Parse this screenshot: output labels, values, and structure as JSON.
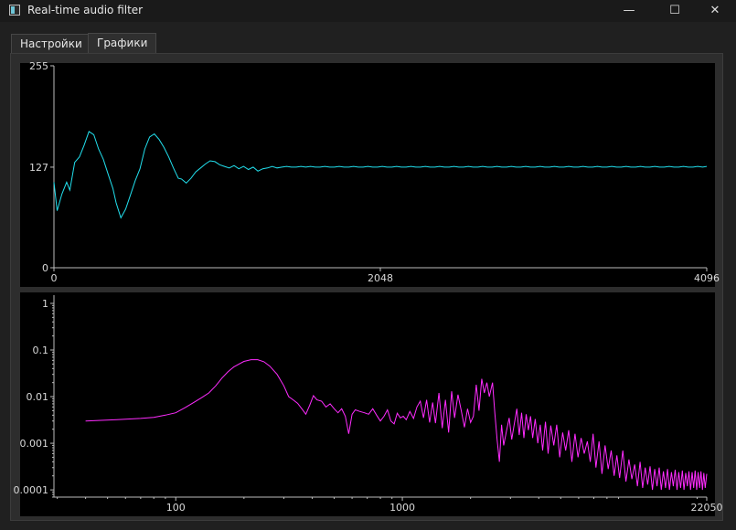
{
  "window": {
    "title": "Real-time audio filter",
    "minimize_glyph": "—",
    "maximize_glyph": "☐",
    "close_glyph": "✕",
    "icon": "app-window-icon"
  },
  "tabs": [
    {
      "label": "Настройки",
      "active": false
    },
    {
      "label": "Графики",
      "active": true
    }
  ],
  "colors": {
    "waveform": "#22e0ee",
    "spectrum": "#ff2cff",
    "axis": "#bdbdbd"
  },
  "chart_data": [
    {
      "type": "line",
      "name": "waveform",
      "xlim": [
        0,
        4096
      ],
      "ylim": [
        0,
        255
      ],
      "x_ticks": [
        0,
        2048,
        4096
      ],
      "y_ticks": [
        0,
        127,
        255
      ],
      "x_tick_labels": [
        "0",
        "2048",
        "4096"
      ],
      "y_tick_labels": [
        "0",
        "127",
        "255"
      ],
      "grid": false,
      "series": [
        {
          "color": "#22e0ee"
        }
      ],
      "points": [
        [
          0,
          108
        ],
        [
          20,
          72
        ],
        [
          50,
          93
        ],
        [
          80,
          108
        ],
        [
          100,
          98
        ],
        [
          130,
          133
        ],
        [
          160,
          140
        ],
        [
          190,
          155
        ],
        [
          220,
          172
        ],
        [
          250,
          168
        ],
        [
          280,
          150
        ],
        [
          310,
          137
        ],
        [
          340,
          118
        ],
        [
          370,
          100
        ],
        [
          390,
          82
        ],
        [
          420,
          63
        ],
        [
          450,
          74
        ],
        [
          480,
          92
        ],
        [
          510,
          110
        ],
        [
          540,
          125
        ],
        [
          570,
          150
        ],
        [
          600,
          165
        ],
        [
          630,
          169
        ],
        [
          660,
          162
        ],
        [
          690,
          152
        ],
        [
          720,
          140
        ],
        [
          750,
          126
        ],
        [
          780,
          113
        ],
        [
          800,
          112
        ],
        [
          830,
          107
        ],
        [
          860,
          113
        ],
        [
          890,
          121
        ],
        [
          920,
          126
        ],
        [
          950,
          131
        ],
        [
          980,
          135
        ],
        [
          1010,
          134
        ],
        [
          1040,
          130
        ],
        [
          1070,
          128
        ],
        [
          1100,
          126
        ],
        [
          1130,
          129
        ],
        [
          1160,
          125
        ],
        [
          1190,
          128
        ],
        [
          1220,
          124
        ],
        [
          1250,
          127
        ],
        [
          1280,
          122
        ],
        [
          1310,
          125
        ],
        [
          1340,
          126
        ],
        [
          1370,
          128
        ],
        [
          1400,
          126
        ],
        [
          1430,
          127
        ],
        [
          1460,
          128
        ],
        [
          1490,
          127
        ],
        [
          1520,
          127
        ],
        [
          1550,
          128
        ],
        [
          1580,
          127
        ],
        [
          1610,
          128
        ],
        [
          1640,
          127
        ],
        [
          1670,
          127
        ],
        [
          1700,
          128
        ],
        [
          1730,
          127
        ],
        [
          1760,
          127
        ],
        [
          1790,
          128
        ],
        [
          1820,
          127
        ],
        [
          1850,
          127
        ],
        [
          1880,
          128
        ],
        [
          1910,
          127
        ],
        [
          1940,
          127
        ],
        [
          1970,
          128
        ],
        [
          2000,
          127
        ],
        [
          2030,
          127
        ],
        [
          2060,
          128
        ],
        [
          2090,
          127
        ],
        [
          2120,
          127
        ],
        [
          2150,
          128
        ],
        [
          2180,
          127
        ],
        [
          2210,
          127
        ],
        [
          2240,
          128
        ],
        [
          2270,
          127
        ],
        [
          2300,
          127
        ],
        [
          2330,
          128
        ],
        [
          2360,
          127
        ],
        [
          2390,
          127
        ],
        [
          2420,
          128
        ],
        [
          2450,
          127
        ],
        [
          2480,
          127
        ],
        [
          2510,
          128
        ],
        [
          2540,
          127
        ],
        [
          2570,
          127
        ],
        [
          2600,
          128
        ],
        [
          2630,
          127
        ],
        [
          2660,
          127
        ],
        [
          2690,
          128
        ],
        [
          2720,
          127
        ],
        [
          2750,
          127
        ],
        [
          2780,
          128
        ],
        [
          2810,
          127
        ],
        [
          2840,
          127
        ],
        [
          2870,
          128
        ],
        [
          2900,
          127
        ],
        [
          2930,
          127
        ],
        [
          2960,
          128
        ],
        [
          2990,
          127
        ],
        [
          3020,
          127
        ],
        [
          3050,
          128
        ],
        [
          3080,
          127
        ],
        [
          3110,
          127
        ],
        [
          3140,
          128
        ],
        [
          3170,
          127
        ],
        [
          3200,
          127
        ],
        [
          3230,
          128
        ],
        [
          3260,
          127
        ],
        [
          3290,
          127
        ],
        [
          3320,
          128
        ],
        [
          3350,
          127
        ],
        [
          3380,
          127
        ],
        [
          3410,
          128
        ],
        [
          3440,
          127
        ],
        [
          3470,
          127
        ],
        [
          3500,
          128
        ],
        [
          3530,
          127
        ],
        [
          3560,
          127
        ],
        [
          3590,
          128
        ],
        [
          3620,
          127
        ],
        [
          3650,
          127
        ],
        [
          3680,
          128
        ],
        [
          3710,
          127
        ],
        [
          3740,
          127
        ],
        [
          3770,
          128
        ],
        [
          3800,
          127
        ],
        [
          3830,
          127
        ],
        [
          3860,
          128
        ],
        [
          3890,
          127
        ],
        [
          3920,
          127
        ],
        [
          3950,
          128
        ],
        [
          3980,
          127
        ],
        [
          4010,
          127
        ],
        [
          4040,
          128
        ],
        [
          4070,
          127
        ],
        [
          4096,
          128
        ]
      ]
    },
    {
      "type": "line",
      "name": "spectrum",
      "xscale": "log",
      "yscale": "log",
      "xlim": [
        29,
        22050
      ],
      "ylim": [
        7e-05,
        1.5
      ],
      "x_ticks": [
        100,
        1000,
        22050
      ],
      "y_ticks": [
        1,
        0.1,
        0.01,
        0.001,
        0.0001
      ],
      "x_tick_labels": [
        "100",
        "1000",
        "22050"
      ],
      "y_tick_labels": [
        "1",
        "0.1",
        "0.01",
        "0.001",
        "0.0001"
      ],
      "grid": false,
      "series": [
        {
          "color": "#ff2cff"
        }
      ],
      "points": [
        [
          40,
          0.003
        ],
        [
          55,
          0.0032
        ],
        [
          70,
          0.0034
        ],
        [
          80,
          0.0036
        ],
        [
          90,
          0.004
        ],
        [
          100,
          0.0045
        ],
        [
          110,
          0.0058
        ],
        [
          120,
          0.0075
        ],
        [
          130,
          0.0095
        ],
        [
          140,
          0.012
        ],
        [
          150,
          0.017
        ],
        [
          160,
          0.025
        ],
        [
          170,
          0.034
        ],
        [
          180,
          0.043
        ],
        [
          190,
          0.05
        ],
        [
          200,
          0.057
        ],
        [
          215,
          0.062
        ],
        [
          230,
          0.062
        ],
        [
          245,
          0.056
        ],
        [
          260,
          0.045
        ],
        [
          280,
          0.03
        ],
        [
          300,
          0.017
        ],
        [
          315,
          0.01
        ],
        [
          330,
          0.0085
        ],
        [
          345,
          0.0072
        ],
        [
          360,
          0.0055
        ],
        [
          375,
          0.0042
        ],
        [
          390,
          0.0065
        ],
        [
          405,
          0.0105
        ],
        [
          420,
          0.0085
        ],
        [
          440,
          0.008
        ],
        [
          460,
          0.006
        ],
        [
          480,
          0.007
        ],
        [
          500,
          0.0055
        ],
        [
          520,
          0.0045
        ],
        [
          540,
          0.0055
        ],
        [
          560,
          0.0038
        ],
        [
          580,
          0.0016
        ],
        [
          600,
          0.0042
        ],
        [
          620,
          0.0052
        ],
        [
          650,
          0.0048
        ],
        [
          680,
          0.0045
        ],
        [
          710,
          0.0042
        ],
        [
          740,
          0.0055
        ],
        [
          770,
          0.004
        ],
        [
          800,
          0.003
        ],
        [
          830,
          0.0038
        ],
        [
          860,
          0.0052
        ],
        [
          890,
          0.003
        ],
        [
          920,
          0.0026
        ],
        [
          950,
          0.0044
        ],
        [
          980,
          0.0035
        ],
        [
          1010,
          0.0038
        ],
        [
          1040,
          0.0032
        ],
        [
          1080,
          0.0048
        ],
        [
          1120,
          0.0034
        ],
        [
          1160,
          0.006
        ],
        [
          1200,
          0.008
        ],
        [
          1240,
          0.0035
        ],
        [
          1280,
          0.0085
        ],
        [
          1320,
          0.0028
        ],
        [
          1360,
          0.0075
        ],
        [
          1400,
          0.0027
        ],
        [
          1450,
          0.012
        ],
        [
          1500,
          0.0021
        ],
        [
          1550,
          0.0085
        ],
        [
          1600,
          0.0017
        ],
        [
          1650,
          0.013
        ],
        [
          1700,
          0.0035
        ],
        [
          1760,
          0.011
        ],
        [
          1820,
          0.005
        ],
        [
          1880,
          0.0022
        ],
        [
          1940,
          0.0055
        ],
        [
          2000,
          0.0028
        ],
        [
          2060,
          0.0038
        ],
        [
          2120,
          0.018
        ],
        [
          2180,
          0.005
        ],
        [
          2240,
          0.024
        ],
        [
          2300,
          0.012
        ],
        [
          2360,
          0.02
        ],
        [
          2420,
          0.01
        ],
        [
          2500,
          0.02
        ],
        [
          2560,
          0.0045
        ],
        [
          2620,
          0.0012
        ],
        [
          2680,
          0.0004
        ],
        [
          2740,
          0.0025
        ],
        [
          2800,
          0.0009
        ],
        [
          2880,
          0.0018
        ],
        [
          2960,
          0.0035
        ],
        [
          3040,
          0.0012
        ],
        [
          3120,
          0.0026
        ],
        [
          3200,
          0.0055
        ],
        [
          3280,
          0.0015
        ],
        [
          3360,
          0.0045
        ],
        [
          3440,
          0.0013
        ],
        [
          3520,
          0.0042
        ],
        [
          3600,
          0.0019
        ],
        [
          3680,
          0.0038
        ],
        [
          3760,
          0.0013
        ],
        [
          3860,
          0.0033
        ],
        [
          3960,
          0.001
        ],
        [
          4060,
          0.0025
        ],
        [
          4160,
          0.0007
        ],
        [
          4280,
          0.0029
        ],
        [
          4400,
          0.0006
        ],
        [
          4520,
          0.0024
        ],
        [
          4660,
          0.0009
        ],
        [
          4800,
          0.0025
        ],
        [
          4950,
          0.0005
        ],
        [
          5100,
          0.0017
        ],
        [
          5260,
          0.0007
        ],
        [
          5420,
          0.0019
        ],
        [
          5600,
          0.0004
        ],
        [
          5780,
          0.0016
        ],
        [
          5960,
          0.0005
        ],
        [
          6150,
          0.0013
        ],
        [
          6350,
          0.0006
        ],
        [
          6550,
          0.0011
        ],
        [
          6750,
          0.0004
        ],
        [
          6950,
          0.0016
        ],
        [
          7150,
          0.0003
        ],
        [
          7380,
          0.0011
        ],
        [
          7600,
          0.00022
        ],
        [
          7850,
          0.0009
        ],
        [
          8100,
          0.00028
        ],
        [
          8350,
          0.0007
        ],
        [
          8600,
          0.0002
        ],
        [
          8850,
          0.00055
        ],
        [
          9100,
          0.00018
        ],
        [
          9400,
          0.0007
        ],
        [
          9700,
          0.00015
        ],
        [
          10000,
          0.00045
        ],
        [
          10300,
          0.00017
        ],
        [
          10600,
          0.00035
        ],
        [
          10900,
          0.00012
        ],
        [
          11200,
          0.0004
        ],
        [
          11500,
          0.00011
        ],
        [
          11800,
          0.0003
        ],
        [
          12100,
          0.00013
        ],
        [
          12400,
          0.00032
        ],
        [
          12700,
          0.0001
        ],
        [
          13000,
          0.00028
        ],
        [
          13300,
          0.00012
        ],
        [
          13600,
          0.0003
        ],
        [
          13900,
          0.0001
        ],
        [
          14200,
          0.00025
        ],
        [
          14500,
          0.00011
        ],
        [
          14800,
          0.00028
        ],
        [
          15100,
          0.0001
        ],
        [
          15400,
          0.00024
        ],
        [
          15700,
          0.00012
        ],
        [
          16000,
          0.00027
        ],
        [
          16300,
          0.0001
        ],
        [
          16600,
          0.00024
        ],
        [
          16900,
          0.00011
        ],
        [
          17200,
          0.00026
        ],
        [
          17500,
          0.0001
        ],
        [
          17800,
          0.00023
        ],
        [
          18100,
          0.00012
        ],
        [
          18400,
          0.00025
        ],
        [
          18700,
          0.0001
        ],
        [
          19000,
          0.00024
        ],
        [
          19300,
          0.00011
        ],
        [
          19600,
          0.00026
        ],
        [
          19900,
          0.0001
        ],
        [
          20200,
          0.00024
        ],
        [
          20500,
          0.00011
        ],
        [
          20800,
          0.00025
        ],
        [
          21100,
          0.0001
        ],
        [
          21400,
          0.00023
        ],
        [
          21700,
          0.00011
        ],
        [
          22050,
          0.00022
        ]
      ]
    }
  ]
}
